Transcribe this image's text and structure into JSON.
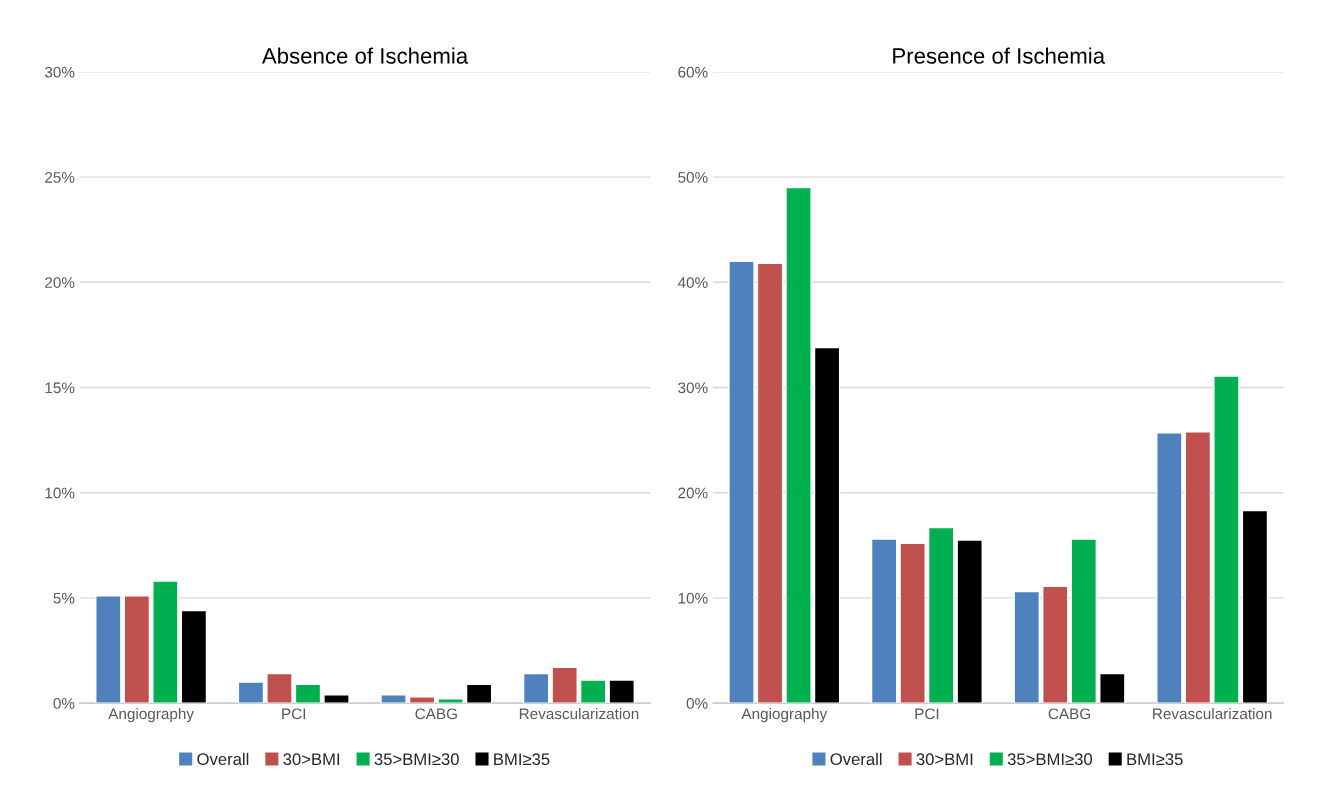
{
  "chart_data": [
    {
      "type": "bar",
      "title": "Absence of Ischemia",
      "categories": [
        "Angiography",
        "PCI",
        "CABG",
        "Revascularization"
      ],
      "series": [
        {
          "name": "Overall",
          "color": "#4f81bd",
          "values": [
            5.1,
            1.0,
            0.4,
            1.4
          ]
        },
        {
          "name": "30>BMI",
          "color": "#c0504d",
          "values": [
            5.1,
            1.4,
            0.3,
            1.7
          ]
        },
        {
          "name": "35>BMI≥30",
          "color": "#00b050",
          "values": [
            5.8,
            0.9,
            0.2,
            1.1
          ]
        },
        {
          "name": "BMI≥35",
          "color": "#000000",
          "values": [
            4.4,
            0.4,
            0.9,
            1.1
          ]
        }
      ],
      "ylim": [
        0,
        30
      ],
      "yticks": [
        {
          "value": 0,
          "label": "0%"
        },
        {
          "value": 5,
          "label": "5%"
        },
        {
          "value": 10,
          "label": "10%"
        },
        {
          "value": 15,
          "label": "15%"
        },
        {
          "value": 20,
          "label": "20%"
        },
        {
          "value": 25,
          "label": "25%"
        },
        {
          "value": 30,
          "label": "30%"
        }
      ],
      "grid": "y",
      "legend": "bottom"
    },
    {
      "type": "bar",
      "title": "Presence of Ischemia",
      "categories": [
        "Angiography",
        "PCI",
        "CABG",
        "Revascularization"
      ],
      "series": [
        {
          "name": "Overall",
          "color": "#4f81bd",
          "values": [
            42.0,
            15.6,
            10.6,
            25.7
          ]
        },
        {
          "name": "30>BMI",
          "color": "#c0504d",
          "values": [
            41.8,
            15.2,
            11.1,
            25.8
          ]
        },
        {
          "name": "35>BMI≥30",
          "color": "#00b050",
          "values": [
            49.0,
            16.7,
            15.6,
            31.1
          ]
        },
        {
          "name": "BMI≥35",
          "color": "#000000",
          "values": [
            33.8,
            15.5,
            2.8,
            18.3
          ]
        }
      ],
      "ylim": [
        0,
        60
      ],
      "yticks": [
        {
          "value": 0,
          "label": "0%"
        },
        {
          "value": 10,
          "label": "10%"
        },
        {
          "value": 20,
          "label": "20%"
        },
        {
          "value": 30,
          "label": "30%"
        },
        {
          "value": 40,
          "label": "40%"
        },
        {
          "value": 50,
          "label": "50%"
        },
        {
          "value": 60,
          "label": "60%"
        }
      ],
      "grid": "y",
      "legend": "bottom"
    }
  ]
}
